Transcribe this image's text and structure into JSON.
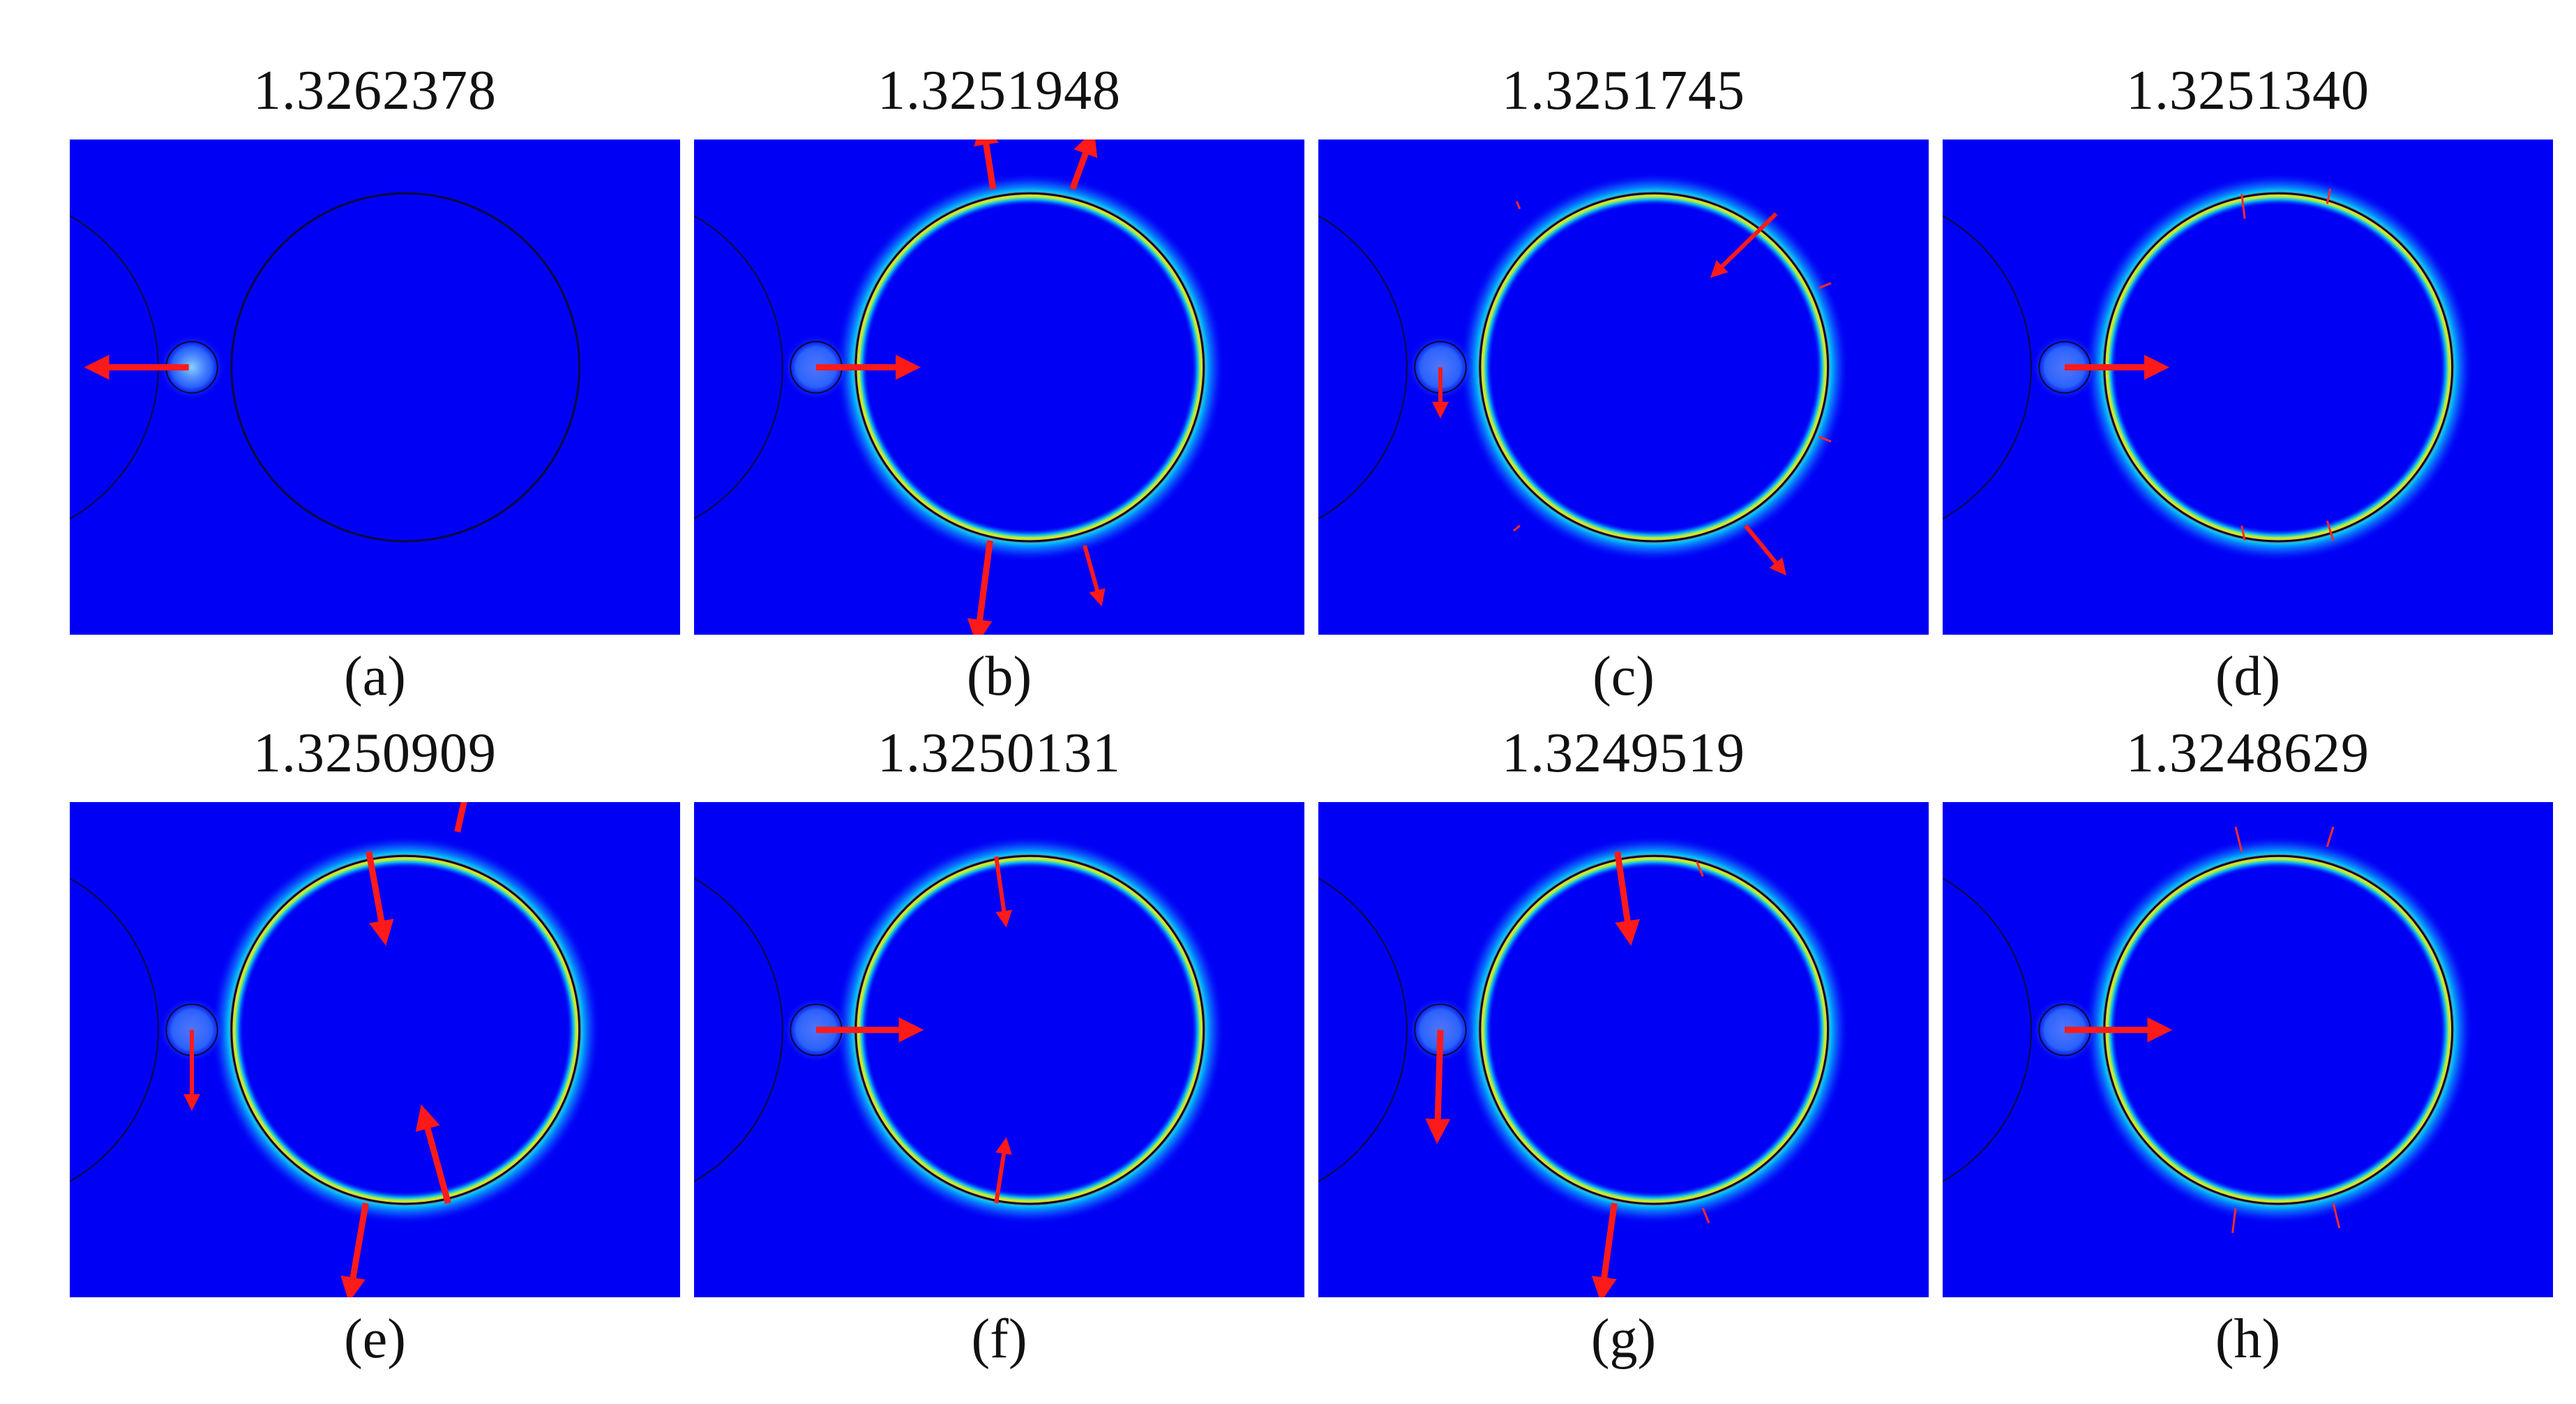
{
  "figure": {
    "panels": [
      {
        "id": "a",
        "title": "1.3262378",
        "caption": "(a)",
        "row": 0,
        "col": 0,
        "glow": "small",
        "arrows": [
          {
            "from": [
              0.195,
              0.46
            ],
            "to": [
              0.04,
              0.46
            ],
            "weight": "thick"
          }
        ]
      },
      {
        "id": "b",
        "title": "1.3251948",
        "caption": "(b)",
        "row": 0,
        "col": 1,
        "glow": "large",
        "arrows": [
          {
            "from": [
              0.49,
              0.1
            ],
            "to": [
              0.475,
              -0.02
            ],
            "weight": "thick"
          },
          {
            "from": [
              0.62,
              0.1
            ],
            "to": [
              0.65,
              0.0
            ],
            "weight": "thick"
          },
          {
            "from": [
              0.485,
              0.81
            ],
            "to": [
              0.465,
              1.0
            ],
            "weight": "thick"
          },
          {
            "from": [
              0.64,
              0.82
            ],
            "to": [
              0.665,
              0.93
            ],
            "weight": "medium"
          },
          {
            "from": [
              0.2,
              0.46
            ],
            "to": [
              0.355,
              0.46
            ],
            "weight": "thick"
          }
        ]
      },
      {
        "id": "c",
        "title": "1.3251745",
        "caption": "(c)",
        "row": 0,
        "col": 2,
        "glow": "large",
        "arrows": [
          {
            "from": [
              0.75,
              0.15
            ],
            "to": [
              0.65,
              0.27
            ],
            "weight": "medium"
          },
          {
            "from": [
              0.7,
              0.78
            ],
            "to": [
              0.76,
              0.87
            ],
            "weight": "medium"
          },
          {
            "from": [
              0.2,
              0.46
            ],
            "to": [
              0.2,
              0.55
            ],
            "weight": "medium"
          }
        ],
        "ticks": [
          {
            "from": [
              0.33,
              0.14
            ],
            "to": [
              0.325,
              0.125
            ]
          },
          {
            "from": [
              0.82,
              0.3
            ],
            "to": [
              0.84,
              0.29
            ]
          },
          {
            "from": [
              0.82,
              0.6
            ],
            "to": [
              0.84,
              0.61
            ]
          },
          {
            "from": [
              0.33,
              0.78
            ],
            "to": [
              0.32,
              0.79
            ]
          }
        ]
      },
      {
        "id": "d",
        "title": "1.3251340",
        "caption": "(d)",
        "row": 0,
        "col": 3,
        "glow": "large",
        "arrows": [
          {
            "from": [
              0.2,
              0.46
            ],
            "to": [
              0.355,
              0.46
            ],
            "weight": "thick"
          }
        ],
        "ticks": [
          {
            "from": [
              0.49,
              0.11
            ],
            "to": [
              0.495,
              0.16
            ]
          },
          {
            "from": [
              0.63,
              0.13
            ],
            "to": [
              0.635,
              0.1
            ]
          },
          {
            "from": [
              0.49,
              0.78
            ],
            "to": [
              0.495,
              0.81
            ]
          },
          {
            "from": [
              0.63,
              0.77
            ],
            "to": [
              0.64,
              0.81
            ]
          }
        ]
      },
      {
        "id": "e",
        "title": "1.3250909",
        "caption": "(e)",
        "row": 1,
        "col": 0,
        "glow": "large",
        "arrows": [
          {
            "from": [
              0.49,
              0.1
            ],
            "to": [
              0.515,
              0.27
            ],
            "weight": "thick"
          },
          {
            "from": [
              0.635,
              0.06
            ],
            "to": [
              0.655,
              -0.05
            ],
            "weight": "thick"
          },
          {
            "from": [
              0.62,
              0.81
            ],
            "to": [
              0.58,
              0.63
            ],
            "weight": "thick"
          },
          {
            "from": [
              0.485,
              0.81
            ],
            "to": [
              0.46,
              0.99
            ],
            "weight": "thick"
          },
          {
            "from": [
              0.2,
              0.46
            ],
            "to": [
              0.2,
              0.61
            ],
            "weight": "medium"
          }
        ]
      },
      {
        "id": "f",
        "title": "1.3250131",
        "caption": "(f)",
        "row": 1,
        "col": 1,
        "glow": "large",
        "arrows": [
          {
            "from": [
              0.495,
              0.11
            ],
            "to": [
              0.51,
              0.24
            ],
            "weight": "medium"
          },
          {
            "from": [
              0.495,
              0.81
            ],
            "to": [
              0.51,
              0.69
            ],
            "weight": "medium"
          },
          {
            "from": [
              0.2,
              0.46
            ],
            "to": [
              0.36,
              0.46
            ],
            "weight": "thick"
          }
        ]
      },
      {
        "id": "g",
        "title": "1.3249519",
        "caption": "(g)",
        "row": 1,
        "col": 2,
        "glow": "large",
        "arrows": [
          {
            "from": [
              0.49,
              0.1
            ],
            "to": [
              0.51,
              0.27
            ],
            "weight": "thick"
          },
          {
            "from": [
              0.485,
              0.81
            ],
            "to": [
              0.465,
              0.99
            ],
            "weight": "thick"
          },
          {
            "from": [
              0.2,
              0.46
            ],
            "to": [
              0.195,
              0.67
            ],
            "weight": "thick"
          }
        ],
        "ticks": [
          {
            "from": [
              0.62,
              0.12
            ],
            "to": [
              0.63,
              0.15
            ]
          },
          {
            "from": [
              0.63,
              0.82
            ],
            "to": [
              0.64,
              0.85
            ]
          }
        ]
      },
      {
        "id": "h",
        "title": "1.3248629",
        "caption": "(h)",
        "row": 1,
        "col": 3,
        "glow": "large",
        "arrows": [
          {
            "from": [
              0.2,
              0.46
            ],
            "to": [
              0.36,
              0.46
            ],
            "weight": "thick"
          }
        ],
        "ticks": [
          {
            "from": [
              0.49,
              0.1
            ],
            "to": [
              0.48,
              0.05
            ]
          },
          {
            "from": [
              0.63,
              0.09
            ],
            "to": [
              0.64,
              0.05
            ]
          },
          {
            "from": [
              0.48,
              0.82
            ],
            "to": [
              0.475,
              0.87
            ]
          },
          {
            "from": [
              0.64,
              0.81
            ],
            "to": [
              0.65,
              0.86
            ]
          }
        ]
      }
    ]
  }
}
